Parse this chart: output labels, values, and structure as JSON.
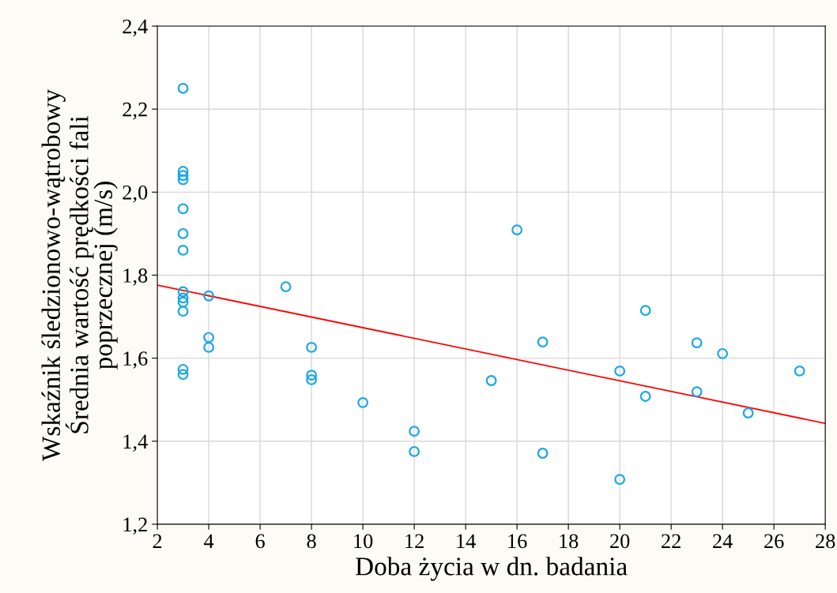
{
  "chart_data": {
    "type": "scatter",
    "xlabel": "Doba życia w dn. badania",
    "ylabel": "Wskaźnik śledzionowo-wątrobowy\nŚrednia wartość prędkości fali\npoprzecznej (m/s)",
    "xlim": [
      2,
      28
    ],
    "ylim": [
      1.2,
      2.4
    ],
    "xticks": [
      2,
      4,
      6,
      8,
      10,
      12,
      14,
      16,
      18,
      20,
      22,
      24,
      26,
      28
    ],
    "yticks": [
      {
        "value": 1.2,
        "label": "1,2"
      },
      {
        "value": 1.4,
        "label": "1,4"
      },
      {
        "value": 1.6,
        "label": "1,6"
      },
      {
        "value": 1.8,
        "label": "1,8"
      },
      {
        "value": 2.0,
        "label": "2,0"
      },
      {
        "value": 2.2,
        "label": "2,2"
      },
      {
        "value": 2.4,
        "label": "2,4"
      }
    ],
    "grid": true,
    "series": [
      {
        "marker": "circle",
        "color": "#1aa7e6",
        "x": [
          3,
          3,
          3,
          3,
          3,
          3,
          3,
          3,
          3,
          3,
          3,
          3,
          3,
          4,
          4,
          4,
          7,
          8,
          8,
          8,
          10,
          12,
          12,
          15,
          16,
          17,
          17,
          20,
          20,
          21,
          21,
          23,
          23,
          24,
          25,
          27
        ],
        "values": [
          2.25,
          2.05,
          2.04,
          2.03,
          1.96,
          1.9,
          1.86,
          1.76,
          1.745,
          1.735,
          1.713,
          1.573,
          1.561,
          1.75,
          1.65,
          1.626,
          1.772,
          1.626,
          1.559,
          1.548,
          1.493,
          1.424,
          1.375,
          1.546,
          1.909,
          1.639,
          1.371,
          1.569,
          1.308,
          1.715,
          1.508,
          1.637,
          1.519,
          1.611,
          1.468,
          1.569
        ]
      },
      {
        "type": "line",
        "marker": "none",
        "color": "#ff0000",
        "x": [
          2,
          28
        ],
        "values": [
          1.776,
          1.443
        ]
      }
    ]
  }
}
